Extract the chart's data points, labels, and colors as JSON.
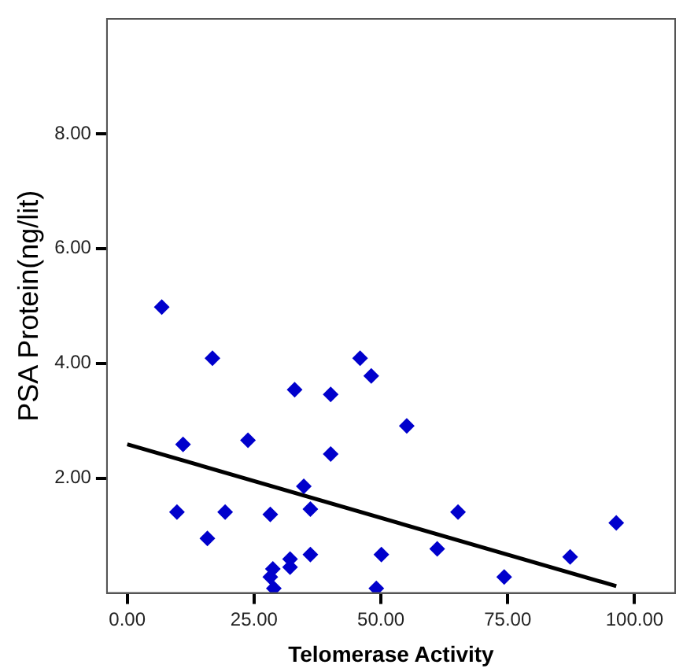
{
  "chart_data": {
    "type": "scatter",
    "xlabel": "Telomerase Activity",
    "ylabel": "PSA Protein(ng/lit)",
    "legend": false,
    "grid": false,
    "xlim": [
      -4,
      108
    ],
    "ylim": [
      0,
      10
    ],
    "xticks": [
      {
        "value": 0,
        "label": "0.00"
      },
      {
        "value": 25,
        "label": "25.00"
      },
      {
        "value": 50,
        "label": "50.00"
      },
      {
        "value": 75,
        "label": "75.00"
      },
      {
        "value": 100,
        "label": "100.00"
      }
    ],
    "yticks": [
      {
        "value": 2,
        "label": "2.00"
      },
      {
        "value": 4,
        "label": "4.00"
      },
      {
        "value": 6,
        "label": "6.00"
      },
      {
        "value": 8,
        "label": "8.00"
      }
    ],
    "series": [
      {
        "marker": "diamond",
        "color": "#0000cc",
        "x": [
          6.8,
          9.8,
          11.0,
          15.8,
          16.8,
          19.3,
          23.8,
          28.2,
          28.2,
          28.7,
          28.9,
          32.1,
          32.1,
          33.0,
          34.8,
          36.1,
          36.1,
          40.1,
          40.1,
          45.9,
          48.1,
          49.1,
          50.1,
          55.1,
          61.1,
          65.2,
          74.3,
          87.3,
          96.4
        ],
        "values": [
          4.98,
          1.41,
          2.59,
          0.95,
          4.09,
          1.41,
          2.66,
          1.37,
          0.28,
          0.42,
          0.08,
          0.59,
          0.45,
          3.54,
          1.86,
          1.46,
          0.67,
          3.46,
          2.42,
          4.09,
          3.78,
          0.08,
          0.67,
          2.91,
          0.77,
          1.41,
          0.28,
          0.63,
          1.22
        ]
      },
      {
        "type": "line",
        "marker": "none",
        "color": "#000000",
        "x": [
          0,
          96.4
        ],
        "values": [
          2.59,
          0.12
        ]
      }
    ]
  }
}
